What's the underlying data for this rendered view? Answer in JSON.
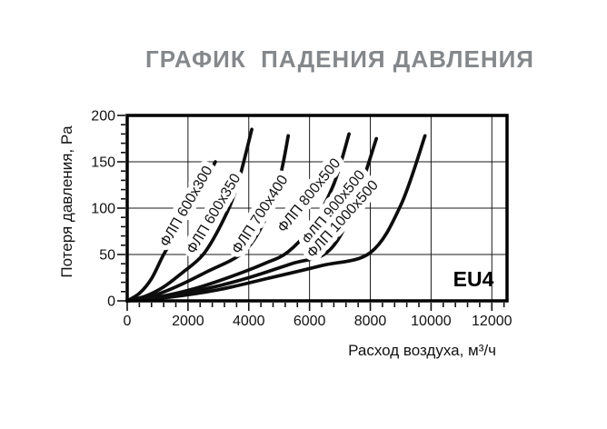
{
  "page": {
    "title_color": "#85888b",
    "curve_color": "#0d0d0d"
  },
  "chart_data": {
    "type": "line",
    "title": "ГРАФИК  ПАДЕНИЯ ДАВЛЕНИЯ",
    "xlabel": "Расход воздуха, м³/ч",
    "ylabel": "Потеря давления, Pa",
    "xlim": [
      0,
      12500
    ],
    "ylim": [
      0,
      200
    ],
    "grid": true,
    "x_ticks_major": [
      0,
      2000,
      4000,
      6000,
      8000,
      10000,
      12000
    ],
    "x_tick_labels": [
      "0",
      "2000",
      "4000",
      "6000",
      "8000",
      "10000",
      "12000"
    ],
    "x_minor_step": 400,
    "x_gridlines": [
      2000,
      4000,
      6000,
      8000,
      10000,
      12000
    ],
    "y_ticks_major": [
      0,
      50,
      100,
      150,
      200
    ],
    "y_tick_labels": [
      "0",
      "50",
      "100",
      "150",
      "200"
    ],
    "y_minor_step": 10,
    "y_gridlines": [
      50,
      100,
      150,
      200
    ],
    "annotation": {
      "text": "EU4"
    },
    "series": [
      {
        "label": "ФЛП 600x300",
        "points": [
          [
            0,
            0
          ],
          [
            400,
            8
          ],
          [
            800,
            24
          ],
          [
            1200,
            50
          ],
          [
            1700,
            78
          ],
          [
            2100,
            101
          ],
          [
            2500,
            125
          ],
          [
            2900,
            150
          ]
        ]
      },
      {
        "label": "ФЛП 600x350",
        "points": [
          [
            0,
            0
          ],
          [
            600,
            5
          ],
          [
            1200,
            15
          ],
          [
            1800,
            30
          ],
          [
            2500,
            50
          ],
          [
            3100,
            83
          ],
          [
            3600,
            122
          ],
          [
            4100,
            185
          ]
        ]
      },
      {
        "label": "ФЛП 700x400",
        "points": [
          [
            0,
            0
          ],
          [
            800,
            5
          ],
          [
            1600,
            15
          ],
          [
            2600,
            31
          ],
          [
            3800,
            52
          ],
          [
            4500,
            85
          ],
          [
            5000,
            130
          ],
          [
            5300,
            178
          ]
        ]
      },
      {
        "label": "ФЛП 800x500",
        "points": [
          [
            0,
            0
          ],
          [
            1000,
            4
          ],
          [
            2200,
            13
          ],
          [
            3400,
            26
          ],
          [
            4500,
            40
          ],
          [
            5300,
            53
          ],
          [
            6100,
            82
          ],
          [
            6800,
            126
          ],
          [
            7300,
            180
          ]
        ]
      },
      {
        "label": "ФЛП 900x500",
        "points": [
          [
            0,
            0
          ],
          [
            1200,
            4
          ],
          [
            2600,
            13
          ],
          [
            4000,
            25
          ],
          [
            5400,
            40
          ],
          [
            6600,
            53
          ],
          [
            7400,
            97
          ],
          [
            8200,
            175
          ]
        ]
      },
      {
        "label": "ФЛП 1000x500",
        "points": [
          [
            0,
            0
          ],
          [
            1400,
            4
          ],
          [
            3000,
            12
          ],
          [
            4600,
            24
          ],
          [
            6400,
            38
          ],
          [
            8000,
            52
          ],
          [
            9000,
            103
          ],
          [
            9800,
            178
          ]
        ]
      }
    ]
  }
}
